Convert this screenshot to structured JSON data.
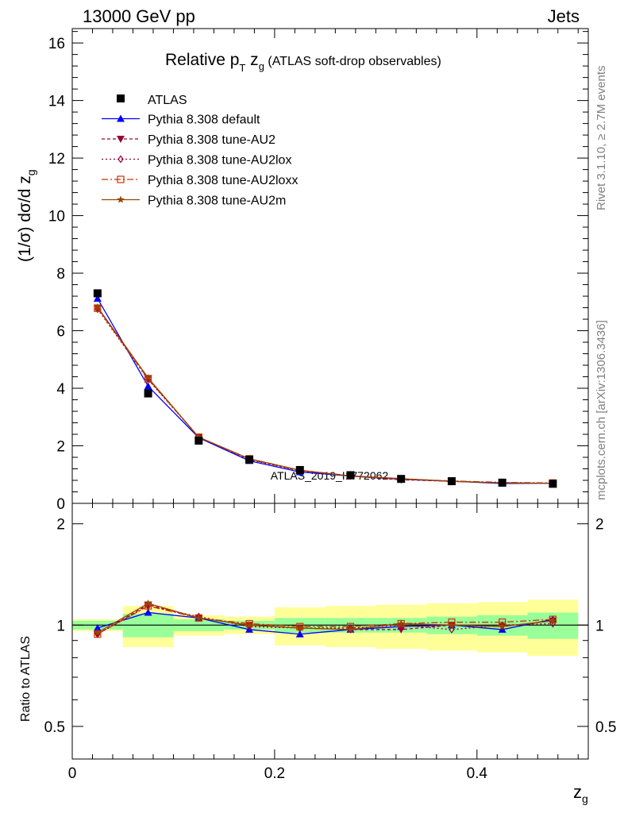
{
  "header": {
    "left": "13000 GeV pp",
    "right": "Jets"
  },
  "side_text": {
    "rivet": "Rivet 3.1.10, ≥ 2.7M events",
    "mcplots": "mcplots.cern.ch [arXiv:1306.3436]"
  },
  "watermark": "ATLAS_2019_I1772062",
  "chart_data": {
    "type": "line",
    "title_main": "Relative p",
    "title_sub": "T",
    "title_rest": " z",
    "title_sub2": "g",
    "title_tail": " (ATLAS soft-drop observables)",
    "xlabel": "z",
    "xlabel_sub": "g",
    "ylabel": "(1/σ) dσ/d z",
    "ylabel_sub": "g",
    "ratio_ylabel": "Ratio to ATLAS",
    "xlim": [
      0,
      0.51
    ],
    "ylim": [
      0,
      16.5
    ],
    "ratio_ylim": [
      0.4,
      2.3
    ],
    "x_ticks": [
      0,
      0.2,
      0.4
    ],
    "x_tick_labels": [
      "0",
      "0.2",
      "0.4"
    ],
    "y_ticks": [
      0,
      2,
      4,
      6,
      8,
      10,
      12,
      14,
      16
    ],
    "y_tick_labels": [
      "0",
      "2",
      "4",
      "6",
      "8",
      "10",
      "12",
      "14",
      "16"
    ],
    "ratio_ticks": [
      0.5,
      1,
      2
    ],
    "ratio_tick_labels": [
      "0.5",
      "1",
      "2"
    ],
    "legend_position": "top-left",
    "bin_edges": [
      0,
      0.05,
      0.1,
      0.15,
      0.2,
      0.25,
      0.3,
      0.35,
      0.4,
      0.45,
      0.5
    ],
    "x": [
      0.025,
      0.075,
      0.125,
      0.175,
      0.225,
      0.275,
      0.325,
      0.375,
      0.425,
      0.475
    ],
    "data": {
      "name": "ATLAS",
      "values": [
        7.3,
        3.82,
        2.18,
        1.52,
        1.16,
        0.98,
        0.85,
        0.77,
        0.72,
        0.68
      ],
      "band_stat": [
        0.03,
        0.08,
        0.04,
        0.03,
        0.05,
        0.05,
        0.05,
        0.06,
        0.07,
        0.09
      ],
      "band_total": [
        0.04,
        0.14,
        0.07,
        0.06,
        0.13,
        0.14,
        0.15,
        0.16,
        0.17,
        0.19
      ]
    },
    "series": [
      {
        "name": "Pythia 8.308 default",
        "color": "#0000ff",
        "dash": "",
        "marker": "triangle-up",
        "values": [
          7.12,
          4.07,
          2.28,
          1.48,
          1.09,
          0.95,
          0.84,
          0.77,
          0.69,
          0.7
        ],
        "ratio": [
          0.98,
          1.09,
          1.05,
          0.97,
          0.94,
          0.97,
          0.99,
          1.0,
          0.97,
          1.04
        ]
      },
      {
        "name": "Pythia 8.308 tune-AU2",
        "color": "#990033",
        "dash": "4,3",
        "marker": "triangle-down",
        "values": [
          6.8,
          4.35,
          2.3,
          1.53,
          1.14,
          0.95,
          0.82,
          0.77,
          0.71,
          0.7
        ],
        "ratio": [
          0.94,
          1.15,
          1.05,
          1.0,
          0.98,
          0.97,
          0.97,
          1.0,
          0.99,
          1.03
        ]
      },
      {
        "name": "Pythia 8.308 tune-AU2lox",
        "color": "#990033",
        "dash": "2,3",
        "marker": "diamond-open",
        "values": [
          6.75,
          4.3,
          2.3,
          1.52,
          1.13,
          0.96,
          0.85,
          0.76,
          0.72,
          0.7
        ],
        "ratio": [
          0.94,
          1.14,
          1.06,
          0.99,
          0.98,
          0.98,
          1.0,
          0.97,
          1.0,
          1.01
        ]
      },
      {
        "name": "Pythia 8.308 tune-AU2loxx",
        "color": "#cc3300",
        "dash": "8,3,2,3",
        "marker": "square-open",
        "values": [
          6.78,
          4.32,
          2.3,
          1.55,
          1.15,
          0.96,
          0.85,
          0.78,
          0.73,
          0.71
        ],
        "ratio": [
          0.94,
          1.14,
          1.05,
          1.01,
          0.99,
          0.99,
          1.01,
          1.02,
          1.02,
          1.04
        ]
      },
      {
        "name": "Pythia 8.308 tune-AU2m",
        "color": "#994400",
        "dash": "",
        "marker": "star",
        "values": [
          6.82,
          4.36,
          2.3,
          1.55,
          1.15,
          0.95,
          0.86,
          0.77,
          0.71,
          0.7
        ],
        "ratio": [
          0.95,
          1.16,
          1.05,
          1.0,
          0.98,
          0.97,
          1.01,
          1.0,
          0.99,
          1.03
        ]
      }
    ]
  }
}
